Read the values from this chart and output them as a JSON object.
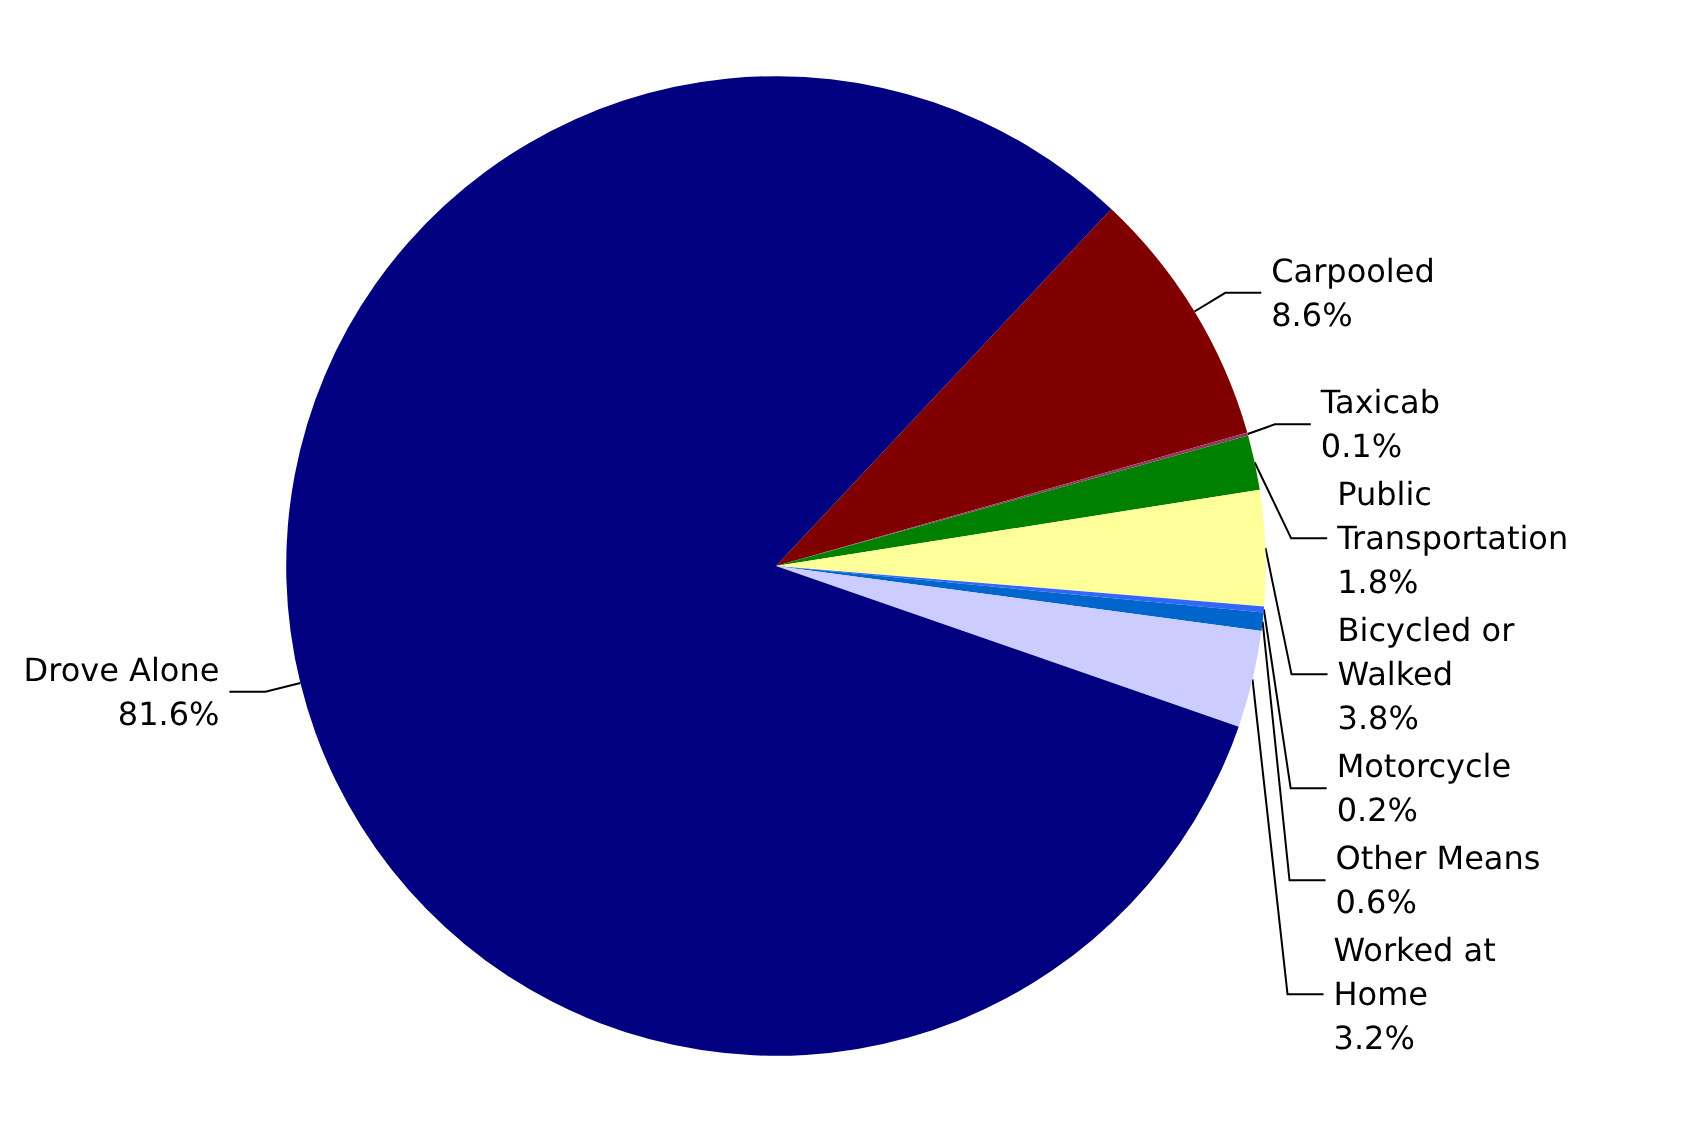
{
  "chart_data": {
    "type": "pie",
    "categories": [
      "Carpooled",
      "Taxicab",
      "Public Transportation",
      "Bicycled or Walked",
      "Motorcycle",
      "Other Means",
      "Worked at Home",
      "Drove Alone"
    ],
    "values": [
      8.6,
      0.1,
      1.8,
      3.8,
      0.2,
      0.6,
      3.2,
      81.6
    ],
    "colors": [
      "#800000",
      "#993366",
      "#008000",
      "#ffff99",
      "#3366ff",
      "#0066cc",
      "#ccccff",
      "#000080"
    ],
    "value_labels": [
      "8.6%",
      "0.1%",
      "1.8%",
      "3.8%",
      "0.2%",
      "0.6%",
      "3.2%",
      "81.6%"
    ],
    "legend": false
  }
}
